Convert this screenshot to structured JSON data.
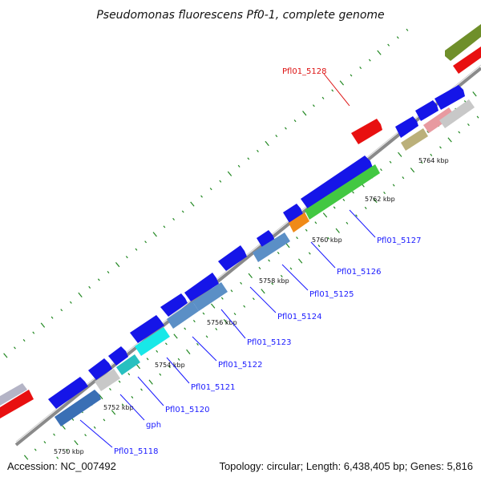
{
  "title": "Pseudomonas fluorescens Pf0-1, complete genome",
  "accession": "Accession: NC_007492",
  "summary": "Topology: circular; Length: 6,438,405 bp; Genes: 5,816",
  "colors": {
    "cds": "#1010e8",
    "trna": "#ee1111",
    "backbone": "#8a8a8a",
    "tick": "#228822",
    "label_blue": "#1a1aff",
    "label_red": "#dd1111"
  },
  "kbp_labels": [
    "5750 kbp",
    "5752 kbp",
    "5754 kbp",
    "5756 kbp",
    "5758 kbp",
    "5760 kbp",
    "5762 kbp",
    "5764 kbp"
  ],
  "gene_labels": [
    {
      "text": "Pfl01_5118",
      "color": "blue"
    },
    {
      "text": "gph",
      "color": "blue"
    },
    {
      "text": "Pfl01_5120",
      "color": "blue"
    },
    {
      "text": "Pfl01_5121",
      "color": "blue"
    },
    {
      "text": "Pfl01_5122",
      "color": "blue"
    },
    {
      "text": "Pfl01_5123",
      "color": "blue"
    },
    {
      "text": "Pfl01_5124",
      "color": "blue"
    },
    {
      "text": "Pfl01_5125",
      "color": "blue"
    },
    {
      "text": "Pfl01_5126",
      "color": "blue"
    },
    {
      "text": "Pfl01_5127",
      "color": "blue"
    },
    {
      "text": "Pfl01_5128",
      "color": "red"
    }
  ]
}
